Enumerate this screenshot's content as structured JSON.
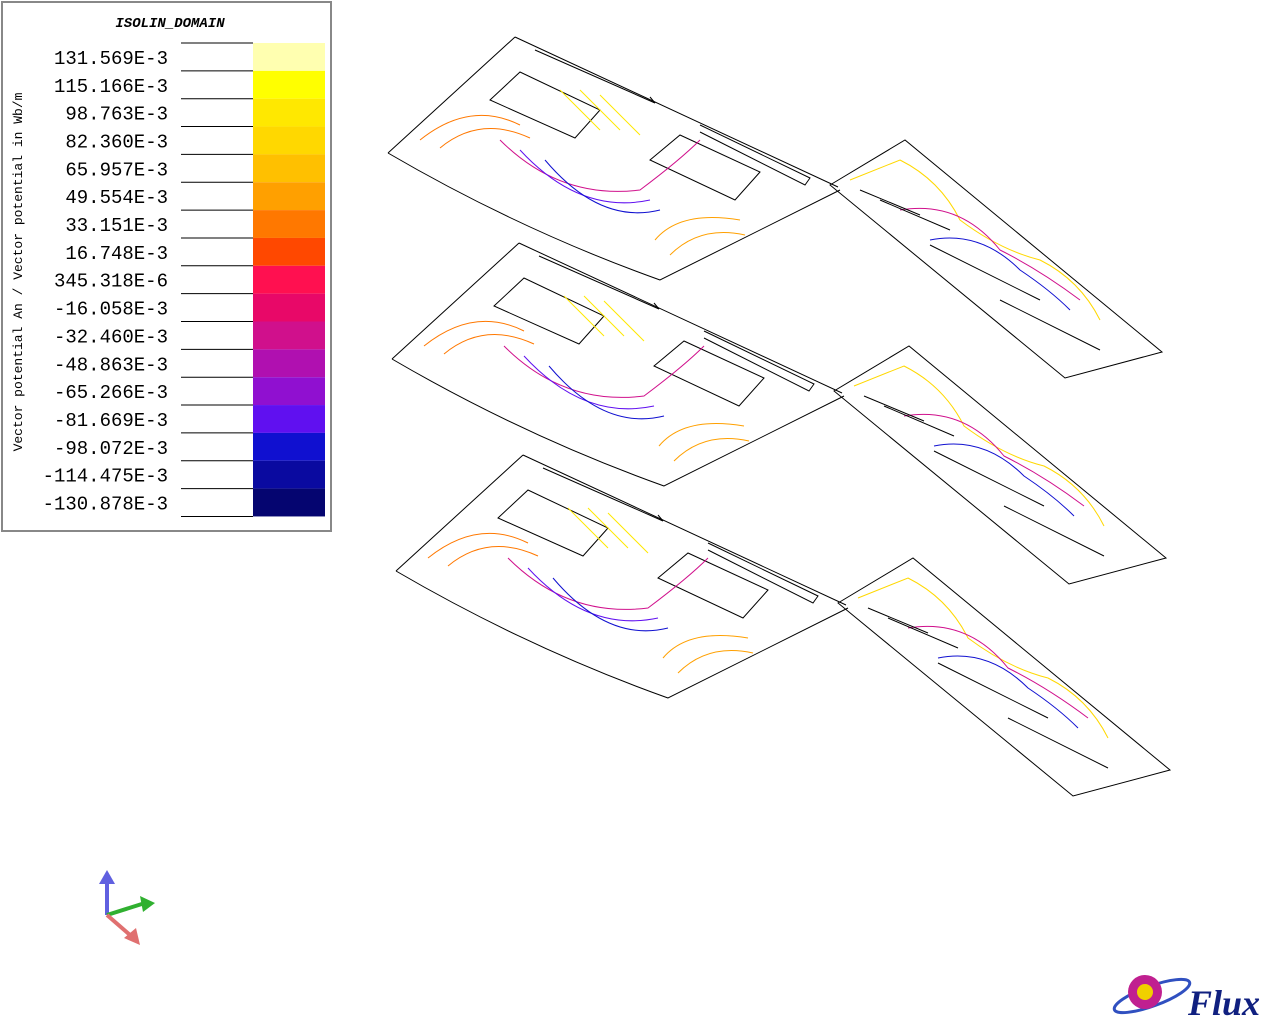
{
  "legend": {
    "title": "ISOLIN_DOMAIN",
    "axis_label": "Vector potential An / Vector potential in Wb/m",
    "entries": [
      {
        "label": "131.569E-3",
        "color": "#ffffb0"
      },
      {
        "label": "115.166E-3",
        "color": "#ffff00"
      },
      {
        "label": "98.763E-3",
        "color": "#ffe800"
      },
      {
        "label": "82.360E-3",
        "color": "#ffd800"
      },
      {
        "label": "65.957E-3",
        "color": "#ffc000"
      },
      {
        "label": "49.554E-3",
        "color": "#ffa000"
      },
      {
        "label": "33.151E-3",
        "color": "#ff7800"
      },
      {
        "label": "16.748E-3",
        "color": "#ff4800"
      },
      {
        "label": "345.318E-6",
        "color": "#ff1050"
      },
      {
        "label": "-16.058E-3",
        "color": "#e80868"
      },
      {
        "label": "-32.460E-3",
        "color": "#d0108c"
      },
      {
        "label": "-48.863E-3",
        "color": "#b010b0"
      },
      {
        "label": "-65.266E-3",
        "color": "#9010d0"
      },
      {
        "label": "-81.669E-3",
        "color": "#6010f0"
      },
      {
        "label": "-98.072E-3",
        "color": "#1010d0"
      },
      {
        "label": "-114.475E-3",
        "color": "#0a0aa0"
      },
      {
        "label": "-130.878E-3",
        "color": "#050570"
      }
    ]
  },
  "logo": {
    "text": "Flux"
  }
}
